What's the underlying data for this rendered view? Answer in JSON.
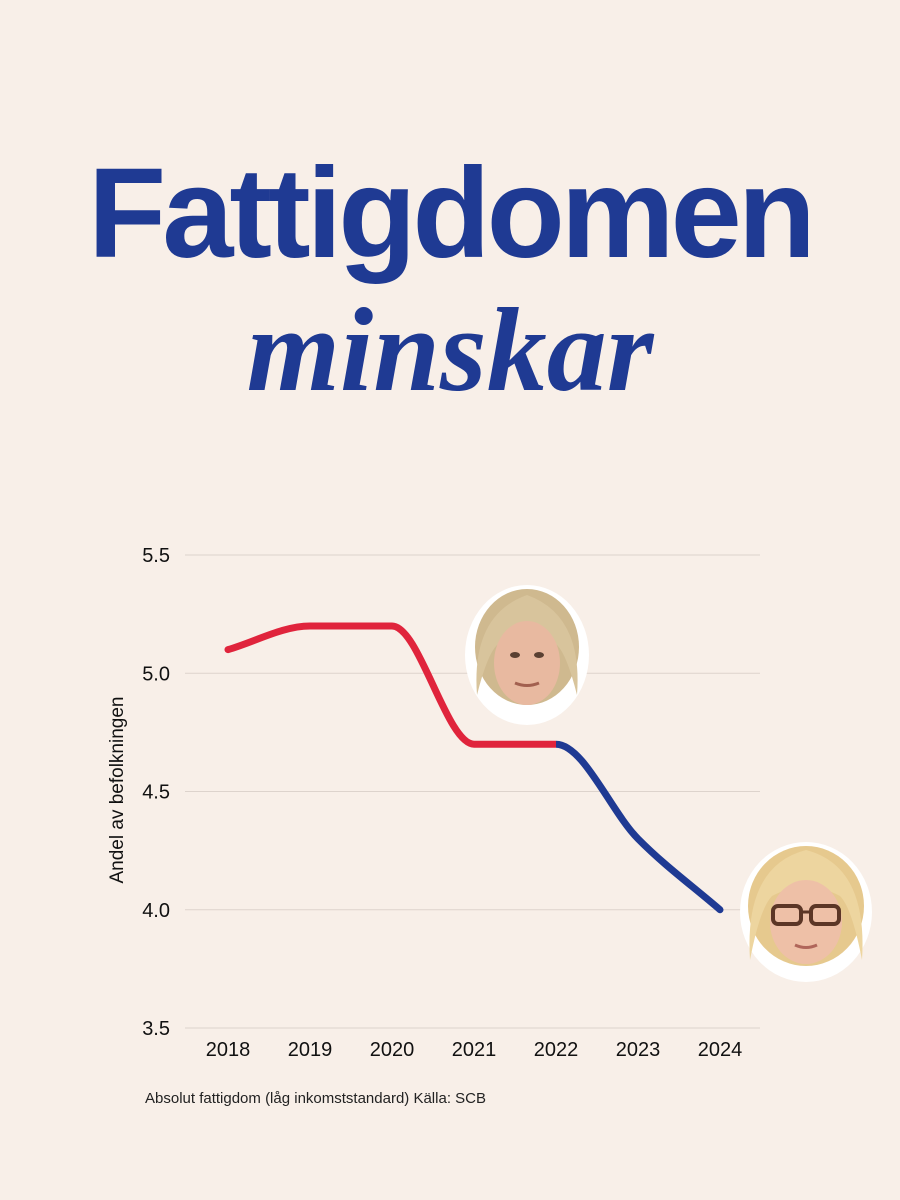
{
  "header": {
    "title": "Fattigdomen",
    "subtitle": "minskar"
  },
  "footnote": "Absolut fattigdom (låg inkomststandard) Källa: SCB",
  "colors": {
    "background": "#f8efe8",
    "title": "#1f3a93",
    "series_before": "#e0243c",
    "series_after": "#1f3a93",
    "grid": "#ddd3cc"
  },
  "chart_data": {
    "type": "line",
    "x": [
      "2018",
      "2019",
      "2020",
      "2021",
      "2022",
      "2023",
      "2024"
    ],
    "series": [
      {
        "values": [
          5.1,
          5.2,
          5.2,
          4.7,
          4.7,
          4.3,
          4.0
        ]
      }
    ],
    "color_change_at": "2022",
    "ylabel": "Andel av befolkningen",
    "ylim": [
      3.5,
      5.5
    ],
    "yticks": [
      "3.5",
      "4.0",
      "4.5",
      "5.0",
      "5.5"
    ],
    "grid": true,
    "legend": "none"
  }
}
